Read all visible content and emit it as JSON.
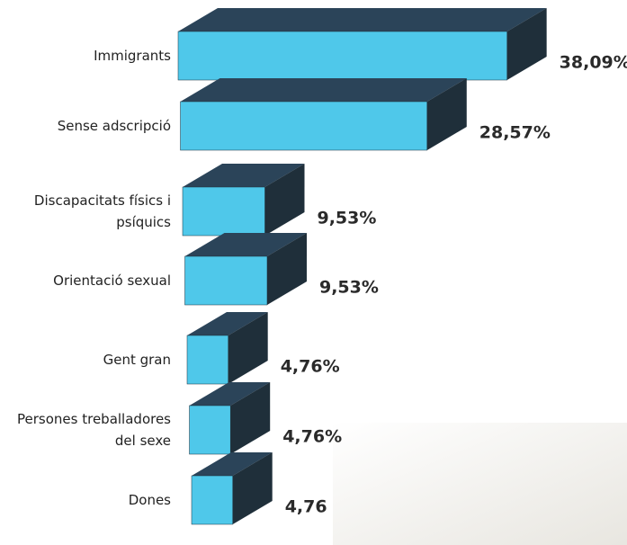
{
  "chart_data": {
    "type": "bar3d",
    "categories": [
      "Immigrants",
      "Sense adscripció",
      "Discapacitats físics i psíquics",
      "Orientació sexual",
      "Gent gran",
      "Persones treballadores del sexe",
      "Dones"
    ],
    "values": [
      38.09,
      28.57,
      9.53,
      9.53,
      4.76,
      4.76,
      4.76
    ],
    "value_labels": [
      "38,09%",
      "28,57%",
      "9,53%",
      "9,53%",
      "4,76%",
      "4,76%",
      "4,76"
    ],
    "colors": {
      "front": "#4fc8ea",
      "top": "#2b4459",
      "side": "#1f2f3a"
    }
  }
}
